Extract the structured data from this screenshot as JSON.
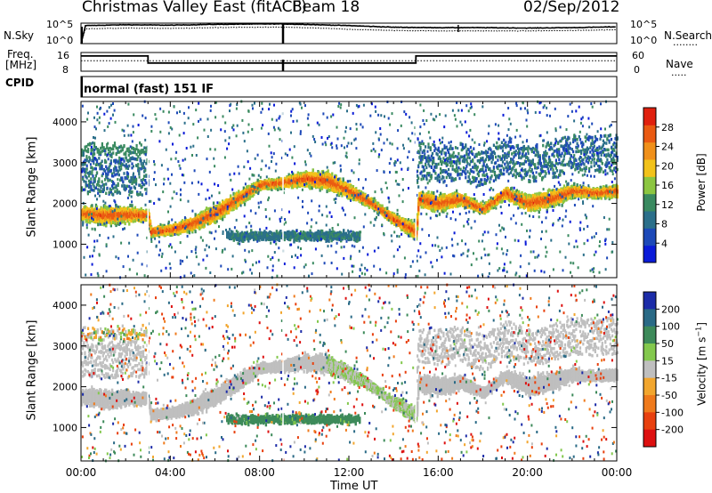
{
  "header": {
    "title": "Christmas Valley East (fitACF)",
    "beam": "Beam 18",
    "date": "02/Sep/2012"
  },
  "nsky_panel": {
    "left_label": "N.Sky",
    "right_label": "N.Search",
    "left_ticks": [
      "10^5",
      "10^0"
    ],
    "right_ticks": [
      "10^5",
      "10^0"
    ]
  },
  "freq_panel": {
    "left_label_1": "Freq.",
    "left_label_2": "[MHz]",
    "right_label": "Nave",
    "left_ticks": [
      "16",
      "8"
    ],
    "right_ticks": [
      "60",
      "0"
    ]
  },
  "cpid": {
    "label": "CPID",
    "value": "normal (fast) 151 IF"
  },
  "colors": {
    "power": [
      "#0a1bd8",
      "#1d49b8",
      "#2b6f8a",
      "#3a8a60",
      "#8cc641",
      "#f2c21a",
      "#f0901a",
      "#ea5a12",
      "#e0200e"
    ],
    "velocity": [
      "#1c2ca8",
      "#2a6a86",
      "#3d8a5a",
      "#83c84d",
      "#bfbfbf",
      "#f2a62e",
      "#ef7a1c",
      "#e8400e",
      "#dd1010"
    ]
  },
  "chart_data": [
    {
      "type": "line",
      "title": "",
      "xlabel": "",
      "ylabel": "N.Sky",
      "xlim": [
        "00:00",
        "24:00"
      ],
      "ylim_log10": [
        0,
        5
      ],
      "series": [
        {
          "name": "N.Sky",
          "x_hours": [
            0,
            0.2,
            2,
            4,
            6,
            8,
            9,
            10,
            12,
            14,
            16,
            18,
            20,
            22,
            24
          ],
          "log10_values": [
            0,
            4.4,
            4.6,
            4.5,
            4.7,
            4.8,
            4.8,
            4.7,
            4.4,
            4.0,
            3.9,
            3.9,
            3.8,
            3.9,
            4.1
          ]
        },
        {
          "name": "N.Search",
          "x_hours": [
            0,
            0.2,
            2,
            4,
            6,
            8,
            9,
            10,
            12,
            14,
            16,
            18,
            20,
            22,
            24
          ],
          "log10_values": [
            0,
            3.6,
            3.8,
            3.7,
            3.9,
            4.0,
            4.0,
            3.9,
            3.5,
            3.2,
            3.1,
            3.1,
            3.1,
            3.2,
            3.4
          ]
        }
      ]
    },
    {
      "type": "line",
      "title": "",
      "xlabel": "",
      "ylabel": "Freq. [MHz]",
      "xlim": [
        "00:00",
        "24:00"
      ],
      "ylim": [
        8,
        16
      ],
      "series": [
        {
          "name": "Freq.",
          "x_hours": [
            0,
            3,
            3,
            15,
            15,
            24
          ],
          "values": [
            14.5,
            14.5,
            11.5,
            11.5,
            14.5,
            14.5
          ]
        },
        {
          "name": "Nave",
          "x_hours": [
            0,
            24
          ],
          "values": [
            12.5,
            12.5
          ]
        }
      ]
    },
    {
      "type": "heatmap",
      "title": "",
      "xlabel": "",
      "ylabel": "Slant Range [km]",
      "x_ticks": [
        "00:00",
        "04:00",
        "08:00",
        "12:00",
        "16:00",
        "20:00",
        "00:00"
      ],
      "y_ticks": [
        1000,
        2000,
        3000,
        4000
      ],
      "ylim": [
        180,
        4500
      ],
      "colorbar": {
        "label": "Power [dB]",
        "ticks": [
          4,
          8,
          12,
          16,
          20,
          24,
          28
        ],
        "range": [
          0,
          32
        ]
      },
      "structures": [
        {
          "feature": "main band",
          "hours": [
            0,
            1,
            2,
            3,
            3.1,
            4,
            5,
            6,
            7,
            8,
            9,
            10,
            11,
            12,
            13,
            14,
            15,
            15.1,
            16,
            17,
            18,
            19,
            20,
            21,
            22,
            23,
            24
          ],
          "center_km": [
            1750,
            1700,
            1720,
            1700,
            1300,
            1350,
            1500,
            1750,
            2100,
            2450,
            2500,
            2600,
            2550,
            2300,
            2000,
            1600,
            1300,
            2100,
            2000,
            2100,
            1850,
            2250,
            2000,
            2100,
            2300,
            2250,
            2300
          ],
          "peak_power_db": 28
        },
        {
          "feature": "lower patch",
          "hours": [
            6.5,
            12.5
          ],
          "center_km": 1200,
          "peak_power_db": 14
        },
        {
          "feature": "upper band",
          "hours": [
            0,
            3
          ],
          "center_km": 3300,
          "peak_power_db": 14
        }
      ]
    },
    {
      "type": "heatmap",
      "title": "",
      "xlabel": "Time UT",
      "ylabel": "Slant Range [km]",
      "x_ticks": [
        "00:00",
        "04:00",
        "08:00",
        "12:00",
        "16:00",
        "20:00",
        "00:00"
      ],
      "y_ticks": [
        1000,
        2000,
        3000,
        4000
      ],
      "ylim": [
        180,
        4500
      ],
      "colorbar": {
        "label": "Velocity [m s^-1]",
        "ticks": [
          200,
          100,
          50,
          15,
          -15,
          -50,
          -100,
          -200
        ]
      },
      "structures": [
        {
          "feature": "ground scatter",
          "hours": [
            0,
            24
          ],
          "velocity_ms": 0
        },
        {
          "feature": "lower patch",
          "hours": [
            6.5,
            12.5
          ],
          "center_km": 1250,
          "velocity_ms": 60
        },
        {
          "feature": "descending tail",
          "hours": [
            11,
            15
          ],
          "velocity_ms": 30
        }
      ]
    }
  ]
}
